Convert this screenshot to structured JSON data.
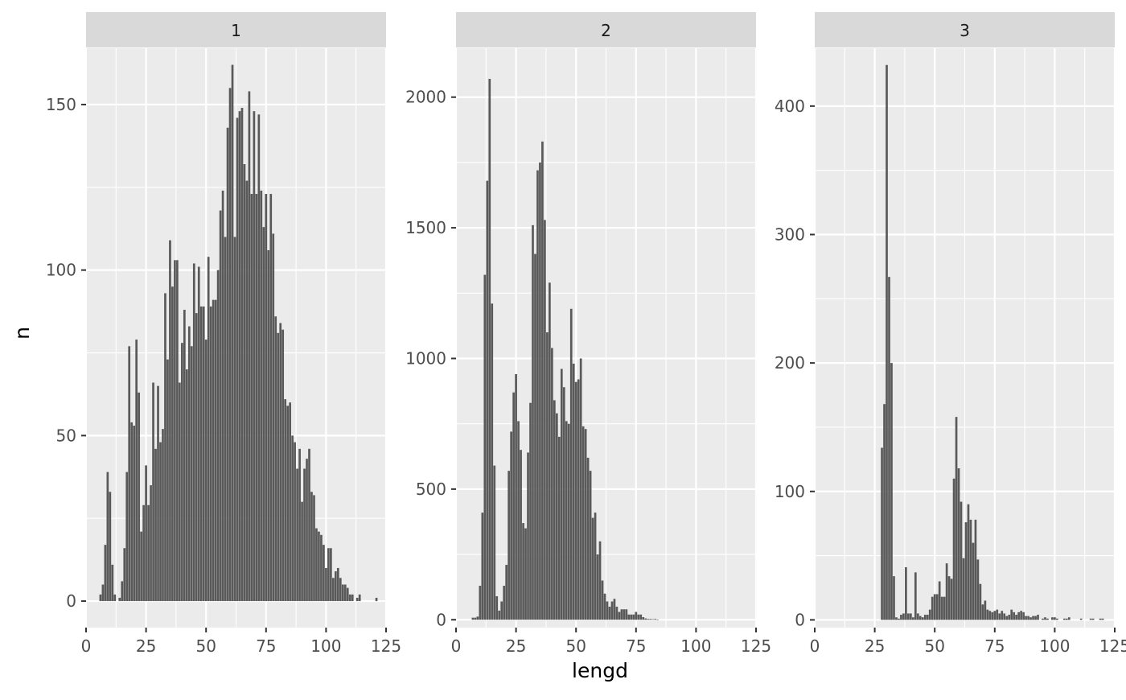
{
  "chart_data": {
    "type": "bar",
    "xlabel": "lengd",
    "ylabel": "n",
    "grid": true,
    "style": {
      "panel_bg": "#ebebeb",
      "strip_bg": "#d9d9d9",
      "bar_color": "#595959",
      "grid_color": "#ffffff",
      "tick_color": "#333333"
    },
    "panels": [
      {
        "strip": "1",
        "xlim": [
          0,
          125
        ],
        "ylim": [
          -8,
          167
        ],
        "x_ticks": [
          0,
          25,
          50,
          75,
          100,
          125
        ],
        "y_ticks": [
          0,
          50,
          100,
          150
        ],
        "x_tick_labels": [
          "0",
          "25",
          "50",
          "75",
          "100",
          "125"
        ],
        "y_tick_labels": [
          "0",
          "50",
          "100",
          "150"
        ],
        "x": [
          6,
          7,
          8,
          9,
          10,
          11,
          12,
          14,
          15,
          16,
          17,
          18,
          19,
          20,
          21,
          22,
          23,
          24,
          25,
          26,
          27,
          28,
          29,
          30,
          31,
          32,
          33,
          34,
          35,
          36,
          37,
          38,
          39,
          40,
          41,
          42,
          43,
          44,
          45,
          46,
          47,
          48,
          49,
          50,
          51,
          52,
          53,
          54,
          55,
          56,
          57,
          58,
          59,
          60,
          61,
          62,
          63,
          64,
          65,
          66,
          67,
          68,
          69,
          70,
          71,
          72,
          73,
          74,
          75,
          76,
          77,
          78,
          79,
          80,
          81,
          82,
          83,
          84,
          85,
          86,
          87,
          88,
          89,
          90,
          91,
          92,
          93,
          94,
          95,
          96,
          97,
          98,
          99,
          100,
          101,
          102,
          103,
          104,
          105,
          106,
          107,
          108,
          109,
          110,
          111,
          112,
          113,
          114,
          116,
          117,
          118,
          121
        ],
        "values": [
          2,
          5,
          17,
          39,
          33,
          11,
          2,
          1,
          6,
          16,
          39,
          77,
          54,
          53,
          79,
          63,
          21,
          29,
          41,
          29,
          35,
          66,
          46,
          65,
          48,
          52,
          93,
          73,
          109,
          95,
          103,
          103,
          66,
          78,
          88,
          70,
          83,
          77,
          102,
          87,
          101,
          89,
          89,
          79,
          104,
          89,
          91,
          91,
          100,
          118,
          124,
          110,
          143,
          155,
          162,
          110,
          146,
          148,
          149,
          132,
          127,
          154,
          123,
          148,
          123,
          147,
          124,
          113,
          123,
          106,
          123,
          111,
          86,
          81,
          84,
          82,
          61,
          59,
          60,
          50,
          48,
          40,
          46,
          30,
          40,
          43,
          46,
          33,
          32,
          22,
          21,
          20,
          17,
          10,
          16,
          16,
          7,
          9,
          10,
          7,
          5,
          5,
          4,
          2,
          2,
          0,
          1,
          2,
          0,
          0,
          0,
          1
        ]
      },
      {
        "strip": "2",
        "xlim": [
          0,
          125
        ],
        "ylim": [
          -30,
          2187
        ],
        "x_ticks": [
          0,
          25,
          50,
          75,
          100,
          125
        ],
        "y_ticks": [
          0,
          500,
          1000,
          1500,
          2000
        ],
        "x_tick_labels": [
          "0",
          "25",
          "50",
          "75",
          "100",
          "125"
        ],
        "y_tick_labels": [
          "0",
          "500",
          "1000",
          "1500",
          "2000"
        ],
        "x": [
          7,
          8,
          9,
          10,
          11,
          12,
          13,
          14,
          15,
          16,
          17,
          18,
          19,
          20,
          21,
          22,
          23,
          24,
          25,
          26,
          27,
          28,
          29,
          30,
          31,
          32,
          33,
          34,
          35,
          36,
          37,
          38,
          39,
          40,
          41,
          42,
          43,
          44,
          45,
          46,
          47,
          48,
          49,
          50,
          51,
          52,
          53,
          54,
          55,
          56,
          57,
          58,
          59,
          60,
          61,
          62,
          63,
          64,
          65,
          66,
          67,
          68,
          69,
          70,
          71,
          72,
          73,
          74,
          75,
          76,
          77,
          78,
          79,
          80,
          81,
          82,
          83,
          84,
          85,
          86
        ],
        "values": [
          8,
          8,
          12,
          130,
          410,
          1320,
          1680,
          2070,
          1210,
          590,
          90,
          35,
          70,
          130,
          210,
          570,
          720,
          870,
          940,
          760,
          650,
          370,
          350,
          640,
          830,
          1510,
          1400,
          1720,
          1750,
          1830,
          1530,
          1100,
          1290,
          1040,
          840,
          790,
          700,
          960,
          890,
          760,
          750,
          1190,
          980,
          910,
          920,
          1000,
          740,
          730,
          620,
          570,
          390,
          410,
          250,
          300,
          150,
          100,
          70,
          50,
          70,
          80,
          50,
          30,
          40,
          40,
          40,
          20,
          20,
          20,
          30,
          20,
          20,
          10,
          5,
          3,
          3,
          2,
          3,
          1,
          0,
          0
        ]
      },
      {
        "strip": "3",
        "xlim": [
          0,
          125
        ],
        "ylim": [
          -6,
          445
        ],
        "x_ticks": [
          0,
          25,
          50,
          75,
          100,
          125
        ],
        "y_ticks": [
          0,
          100,
          200,
          300,
          400
        ],
        "x_tick_labels": [
          "0",
          "25",
          "50",
          "75",
          "100",
          "125"
        ],
        "y_tick_labels": [
          "0",
          "100",
          "200",
          "300",
          "400"
        ],
        "x": [
          28,
          29,
          30,
          31,
          32,
          33,
          34,
          35,
          36,
          37,
          38,
          39,
          40,
          41,
          42,
          43,
          44,
          45,
          46,
          47,
          48,
          49,
          50,
          51,
          52,
          53,
          54,
          55,
          56,
          57,
          58,
          59,
          60,
          61,
          62,
          63,
          64,
          65,
          66,
          67,
          68,
          69,
          70,
          71,
          72,
          73,
          74,
          75,
          76,
          77,
          78,
          79,
          80,
          81,
          82,
          83,
          84,
          85,
          86,
          87,
          88,
          89,
          90,
          91,
          92,
          93,
          95,
          96,
          97,
          99,
          100,
          101,
          104,
          105,
          106,
          111,
          115,
          116,
          119,
          120
        ],
        "values": [
          134,
          168,
          432,
          267,
          200,
          34,
          2,
          1,
          4,
          5,
          41,
          5,
          5,
          2,
          37,
          5,
          3,
          2,
          4,
          4,
          8,
          18,
          20,
          20,
          30,
          18,
          18,
          44,
          34,
          32,
          110,
          158,
          118,
          92,
          48,
          76,
          90,
          78,
          60,
          78,
          47,
          28,
          12,
          15,
          8,
          7,
          6,
          7,
          8,
          5,
          7,
          5,
          3,
          4,
          8,
          6,
          4,
          6,
          7,
          6,
          3,
          3,
          2,
          3,
          3,
          4,
          1,
          2,
          1,
          2,
          2,
          1,
          1,
          1,
          2,
          1,
          1,
          1,
          1,
          1
        ]
      }
    ]
  }
}
